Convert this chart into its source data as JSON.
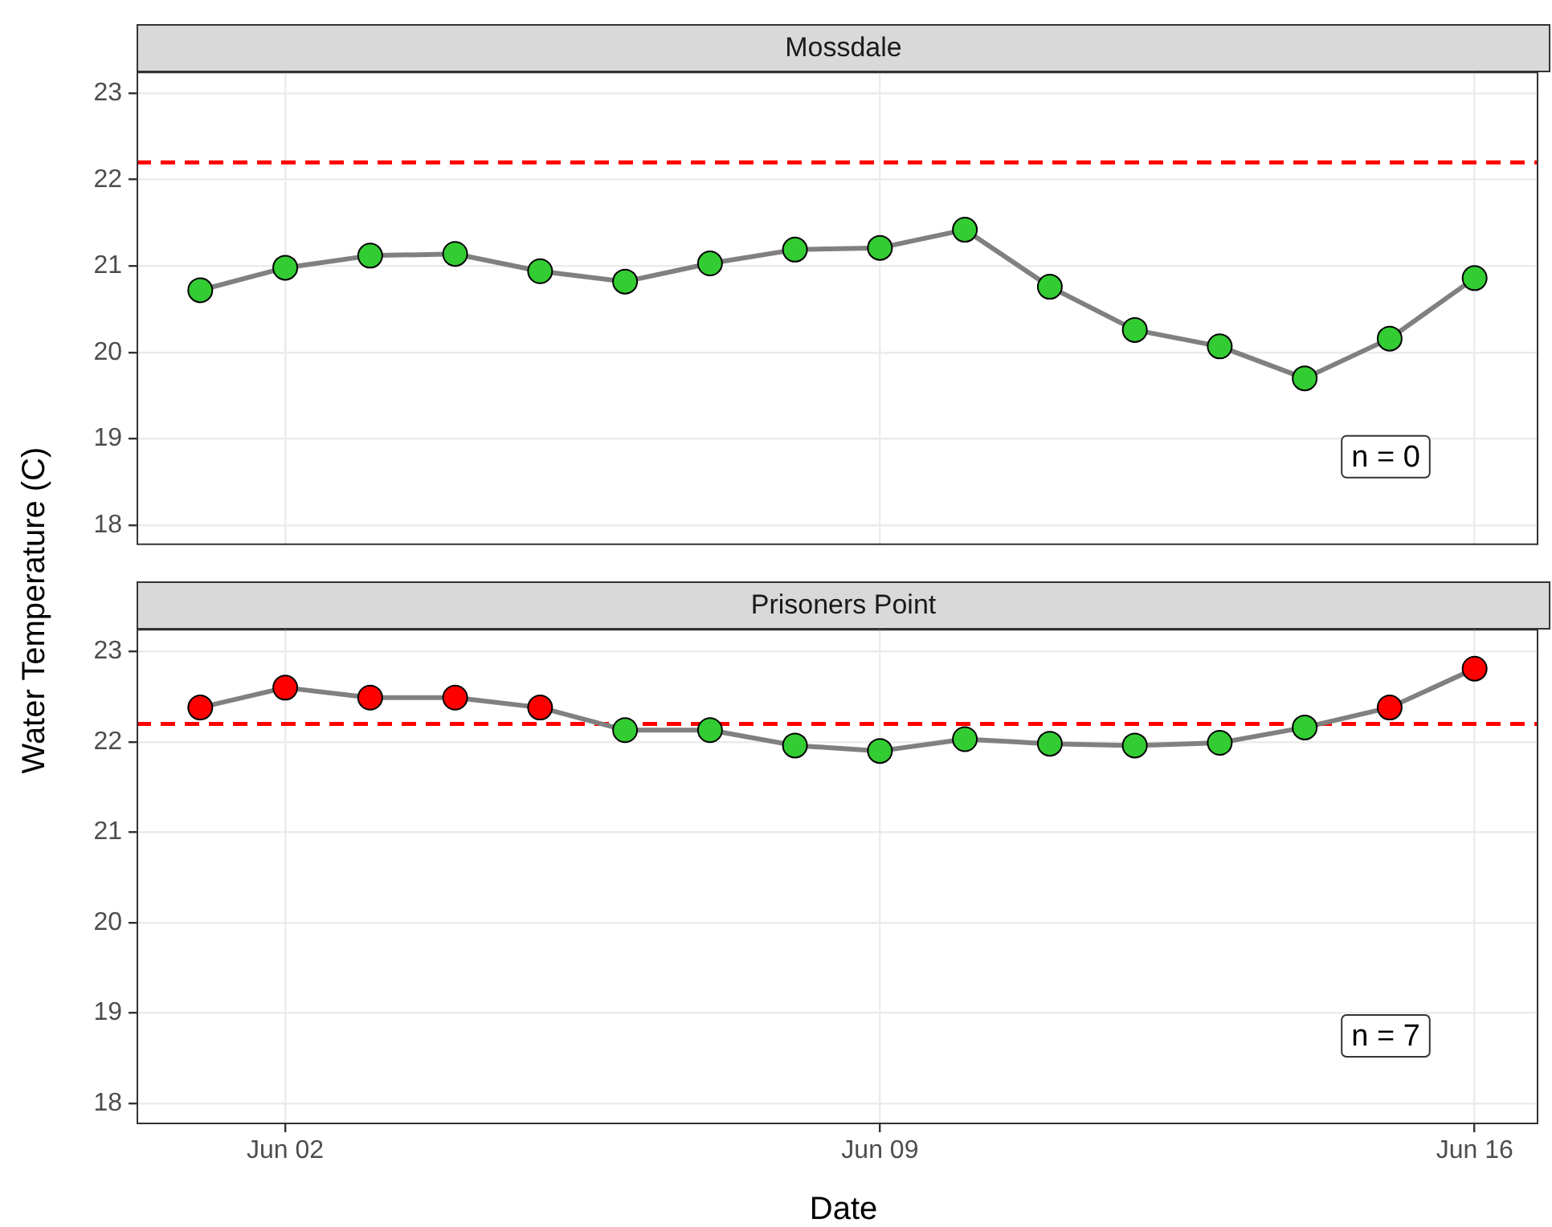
{
  "chart_data": [
    {
      "type": "line",
      "title": "Mossdale",
      "ylabel": "Water Temperature (C)",
      "x": [
        "--06-01",
        "--06-02",
        "--06-03",
        "--06-04",
        "--06-05",
        "--06-06",
        "--06-07",
        "--06-08",
        "--06-09",
        "--06-10",
        "--06-11",
        "--06-12",
        "--06-13",
        "--06-14",
        "--06-15",
        "--06-16"
      ],
      "series": [
        {
          "color": "#808080",
          "colors": [
            "#33cc33",
            "#33cc33",
            "#33cc33",
            "#33cc33",
            "#33cc33",
            "#33cc33",
            "#33cc33",
            "#33cc33",
            "#33cc33",
            "#33cc33",
            "#33cc33",
            "#33cc33",
            "#33cc33",
            "#33cc33",
            "#33cc33",
            "#33cc33"
          ],
          "values": [
            20.72,
            20.98,
            21.12,
            21.14,
            20.94,
            20.82,
            21.03,
            21.19,
            21.21,
            21.42,
            20.76,
            20.26,
            20.07,
            19.7,
            20.16,
            20.86
          ]
        }
      ],
      "xlim": [
        "--05-31T06:00",
        "--06-16T18:00"
      ],
      "xticks": [
        {
          "value": "--06-02",
          "label": null
        },
        {
          "value": "--06-09",
          "label": null
        },
        {
          "value": "--06-16",
          "label": null
        }
      ],
      "ylim": [
        17.77,
        23.25
      ],
      "yticks": [
        18,
        19,
        20,
        21,
        22,
        23
      ],
      "ref_lines": [
        {
          "axis": "y",
          "value": 22.2,
          "color": "#ff0000",
          "line_style": "dashed"
        }
      ],
      "annotations": [
        "n = 0"
      ],
      "grid": true,
      "marker": "circle",
      "line_style": "solid",
      "tick_labels": "y"
    },
    {
      "type": "line",
      "title": "Prisoners Point",
      "xlabel": "Date",
      "x": [
        "--06-01",
        "--06-02",
        "--06-03",
        "--06-04",
        "--06-05",
        "--06-06",
        "--06-07",
        "--06-08",
        "--06-09",
        "--06-10",
        "--06-11",
        "--06-12",
        "--06-13",
        "--06-14",
        "--06-15",
        "--06-16"
      ],
      "series": [
        {
          "color": "#808080",
          "colors": [
            "#ff0000",
            "#ff0000",
            "#ff0000",
            "#ff0000",
            "#ff0000",
            "#33cc33",
            "#33cc33",
            "#33cc33",
            "#33cc33",
            "#33cc33",
            "#33cc33",
            "#33cc33",
            "#33cc33",
            "#33cc33",
            "#ff0000",
            "#ff0000"
          ],
          "values": [
            22.38,
            22.6,
            22.49,
            22.49,
            22.38,
            22.13,
            22.13,
            21.96,
            21.9,
            22.03,
            21.98,
            21.96,
            21.99,
            22.16,
            22.38,
            22.81
          ]
        }
      ],
      "xlim": [
        "--05-31T06:00",
        "--06-16T18:00"
      ],
      "xticks": [
        {
          "value": "--06-02",
          "label": "Jun 02"
        },
        {
          "value": "--06-09",
          "label": "Jun 09"
        },
        {
          "value": "--06-16",
          "label": "Jun 16"
        }
      ],
      "ylim": [
        17.77,
        23.25
      ],
      "yticks": [
        18,
        19,
        20,
        21,
        22,
        23
      ],
      "ref_lines": [
        {
          "axis": "y",
          "value": 22.2,
          "color": "#ff0000",
          "line_style": "dashed"
        }
      ],
      "annotations": [
        "n = 7"
      ],
      "grid": true,
      "marker": "circle",
      "line_style": "solid"
    }
  ]
}
